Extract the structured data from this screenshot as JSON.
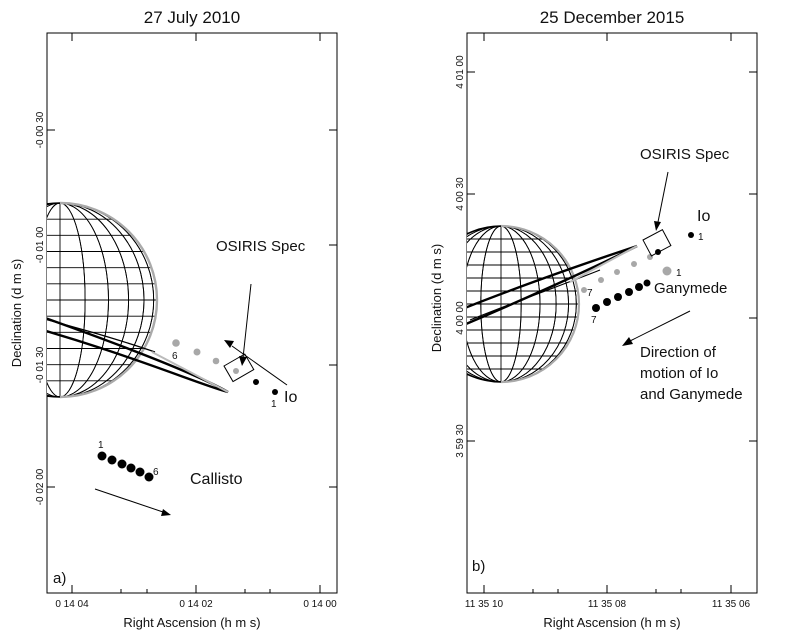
{
  "panels": [
    {
      "title": "27 July 2010",
      "tag": "a)",
      "ylabel": "Declination (d m s)",
      "xlabel": "Right Ascension (h m s)",
      "xticks": [
        "0 14 04",
        "0 14 02",
        "0 14 00"
      ],
      "yticks": [
        "-0 00 30",
        "-0 01 00",
        "-0 01 30",
        "-0 02 00"
      ],
      "annotations": {
        "osiris": "OSIRIS Spec",
        "io": "Io",
        "callisto": "Callisto",
        "io_first": "1",
        "io_last": "6",
        "cal_first": "1",
        "cal_last": "6"
      }
    },
    {
      "title": "25 December 2015",
      "tag": "b)",
      "ylabel": "Declination (d m s)",
      "xlabel": "Right Ascension (h m s)",
      "xticks": [
        "11 35 10",
        "11 35 08",
        "11 35 06"
      ],
      "yticks": [
        "4 01 00",
        "4 00 30",
        "4 00 00",
        "3 59 30"
      ],
      "annotations": {
        "osiris": "OSIRIS Spec",
        "io": "Io",
        "ganymede": "Ganymede",
        "direction": [
          "Direction of",
          "motion of Io",
          "and Ganymede"
        ],
        "io_first": "1",
        "io_last": "7",
        "gan_first": "1",
        "gan_last": "7"
      }
    }
  ]
}
